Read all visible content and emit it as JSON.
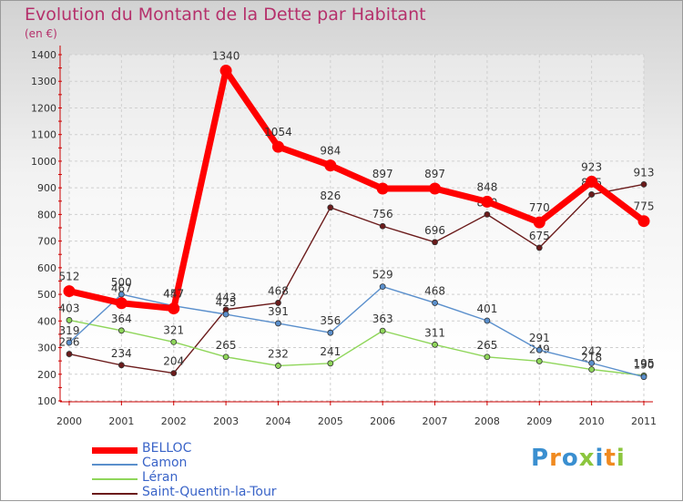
{
  "chart_data": {
    "type": "line",
    "title": "Evolution du Montant de la Dette par Habitant",
    "subtitle": "(en €)",
    "x": [
      "2000",
      "2001",
      "2002",
      "2003",
      "2004",
      "2005",
      "2006",
      "2007",
      "2008",
      "2009",
      "2010",
      "2011"
    ],
    "yticks": [
      100,
      200,
      300,
      400,
      500,
      600,
      700,
      800,
      900,
      1000,
      1100,
      1200,
      1300,
      1400
    ],
    "ylim": [
      100,
      1400
    ],
    "grid": true,
    "legend_position": "bottom-left",
    "series": [
      {
        "name": "Saint-Quentin-la-Tour",
        "color": "#6b1b1b",
        "width": 1.4,
        "values": [
          276,
          234,
          204,
          443,
          468,
          826,
          756,
          696,
          800,
          675,
          875,
          913
        ],
        "labels": [
          "276",
          "234",
          "204",
          "443",
          "468",
          "826",
          "756",
          "696",
          "800",
          "675",
          "875",
          "913"
        ]
      },
      {
        "name": "Léran",
        "color": "#8fd65a",
        "width": 1.4,
        "values": [
          403,
          364,
          321,
          265,
          232,
          241,
          363,
          311,
          265,
          249,
          218,
          195
        ],
        "labels": [
          "403",
          "364",
          "321",
          "265",
          "232",
          "241",
          "363",
          "311",
          "265",
          "249",
          "218",
          "195"
        ]
      },
      {
        "name": "Camon",
        "color": "#5a8fcc",
        "width": 1.4,
        "values": [
          319,
          500,
          457,
          425,
          391,
          356,
          529,
          468,
          401,
          291,
          242,
          190
        ],
        "labels": [
          "319",
          "500",
          "457",
          "425",
          "391",
          "356",
          "529",
          "468",
          "401",
          "291",
          "242",
          "190"
        ]
      },
      {
        "name": "BELLOC",
        "color": "#ff0000",
        "width": 7,
        "values": [
          512,
          467,
          447,
          1340,
          1054,
          984,
          897,
          897,
          848,
          770,
          923,
          775
        ],
        "labels": [
          "512",
          "467",
          "447",
          "1340",
          "1054",
          "984",
          "897",
          "897",
          "848",
          "770",
          "923",
          "775"
        ]
      }
    ]
  },
  "legend": [
    {
      "name": "BELLOC",
      "color": "#ff0000"
    },
    {
      "name": "Camon",
      "color": "#5a8fcc"
    },
    {
      "name": "Léran",
      "color": "#8fd65a"
    },
    {
      "name": "Saint-Quentin-la-Tour",
      "color": "#6b1b1b"
    }
  ],
  "logo": {
    "letters": [
      "P",
      "r",
      "o",
      "x",
      "i",
      "t",
      "i"
    ],
    "colors": [
      "#3a8fd0",
      "#f08a20",
      "#3a8fd0",
      "#8cc63e",
      "#3a8fd0",
      "#f08a20",
      "#8cc63e"
    ]
  }
}
